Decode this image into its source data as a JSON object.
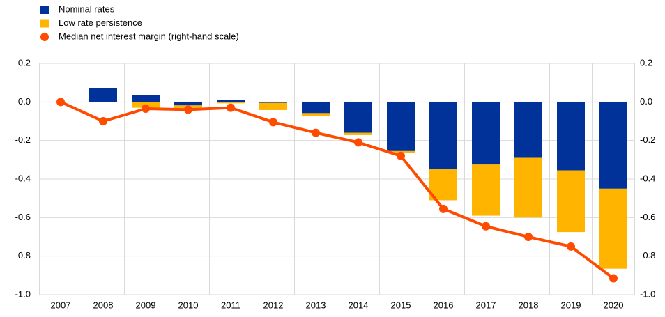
{
  "chart_data": {
    "type": "bar_line",
    "categories": [
      "2007",
      "2008",
      "2009",
      "2010",
      "2011",
      "2012",
      "2013",
      "2014",
      "2015",
      "2016",
      "2017",
      "2018",
      "2019",
      "2020"
    ],
    "series": [
      {
        "name": "Nominal rates",
        "color": "#003299",
        "type": "bar",
        "values": [
          0,
          0.072,
          0.036,
          -0.018,
          0.01,
          -0.005,
          -0.058,
          -0.16,
          -0.255,
          -0.35,
          -0.325,
          -0.29,
          -0.355,
          -0.45
        ]
      },
      {
        "name": "Low rate persistence",
        "color": "#ffb400",
        "type": "bar",
        "values": [
          0,
          0,
          -0.03,
          -0.015,
          -0.007,
          -0.037,
          -0.015,
          -0.012,
          -0.008,
          -0.16,
          -0.265,
          -0.31,
          -0.32,
          -0.415
        ]
      },
      {
        "name": "Median net interest margin (right-hand scale)",
        "color": "#ff4b00",
        "type": "line",
        "axis": "y2",
        "values": [
          0,
          -0.1,
          -0.035,
          -0.04,
          -0.03,
          -0.105,
          -0.16,
          -0.21,
          -0.28,
          -0.555,
          -0.645,
          -0.7,
          -0.75,
          -0.915
        ]
      }
    ],
    "ylim": [
      -1.0,
      0.2
    ],
    "yticks": [
      0.2,
      {
        "value": 0.0,
        "label": "0.0"
      },
      -0.2,
      -0.4,
      -0.6,
      -0.8,
      {
        "value": -1.0,
        "label": "-1.0"
      }
    ],
    "y2lim": [
      -1.0,
      0.2
    ],
    "y2ticks": [
      0.2,
      {
        "value": 0.0,
        "label": "0.0"
      },
      -0.2,
      -0.4,
      -0.6,
      -0.8,
      {
        "value": -1.0,
        "label": "-1.0"
      }
    ],
    "grid": true,
    "legend": "top-left"
  }
}
